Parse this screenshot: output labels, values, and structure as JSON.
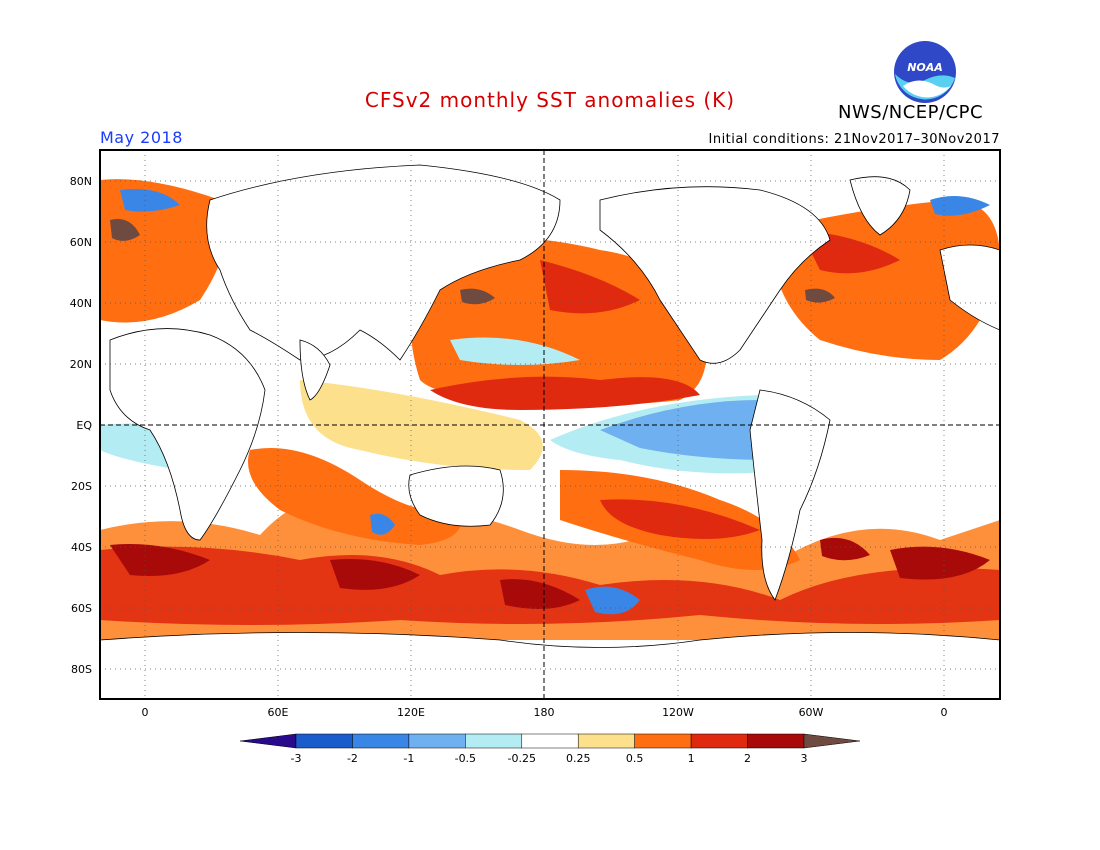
{
  "title": "CFSv2 monthly SST anomalies (K)",
  "agency": "NWS/NCEP/CPC",
  "logo_text": "NOAA",
  "period": "May 2018",
  "initial_conditions": "Initial conditions: 21Nov2017–30Nov2017",
  "colors": {
    "title": "#d40000",
    "period": "#1a3cff",
    "frame": "#000000"
  },
  "map": {
    "lat_labels": [
      "80N",
      "60N",
      "40N",
      "20N",
      "EQ",
      "20S",
      "40S",
      "60S",
      "80S"
    ],
    "lon_labels": [
      "0",
      "60E",
      "120E",
      "180",
      "120W",
      "60W",
      "0"
    ]
  },
  "colorbar": {
    "tick_labels": [
      "-3",
      "-2",
      "-1",
      "-0.5",
      "-0.25",
      "0.25",
      "0.5",
      "1",
      "2",
      "3"
    ],
    "colors": [
      "#2a0a8c",
      "#1b5ccc",
      "#3a86e6",
      "#6fb0f0",
      "#b4ecf4",
      "#ffffff",
      "#fde08c",
      "#ff6e10",
      "#e02a10",
      "#a80a0a",
      "#6e4a40"
    ]
  }
}
